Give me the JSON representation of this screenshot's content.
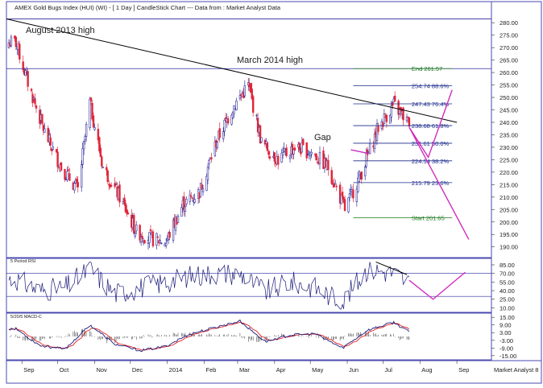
{
  "header": {
    "title": "AMEX Gold Bugs Index (HUI) (WI) -  [ 1 Day ] CandleStick Chart --- Data from : Market Analyst Data"
  },
  "colors": {
    "up_candle": "#2f2f9e",
    "down_candle": "#e0263a",
    "trendline": "#000000",
    "horizontal_level": "#2a2aa0",
    "fib_levels": "#1a2a8a",
    "fib_end": "#1a7a1a",
    "projection": "#d02cc0",
    "indicator_line": "#1c1c7a",
    "macd_signal": "#e02020",
    "macd_line": "#1c1c7a"
  },
  "chart_data": [
    {
      "type": "candlestick",
      "panel": "price",
      "title": "AMEX Gold Bugs Index (HUI) (WI) -  [ 1 Day ] CandleStick Chart --- Data from : Market Analyst Data",
      "x_labels": [
        "Sep",
        "Oct",
        "Nov",
        "Dec",
        "2014",
        "Feb",
        "Mar",
        "Apr",
        "May",
        "Jun",
        "Jul",
        "Aug",
        "Sep"
      ],
      "y_ticks": [
        "280.00",
        "275.00",
        "270.00",
        "265.00",
        "260.00",
        "255.00",
        "250.00",
        "245.00",
        "240.00",
        "235.00",
        "230.00",
        "225.00",
        "220.00",
        "215.00",
        "210.00",
        "205.00",
        "200.00",
        "195.00",
        "190.00"
      ],
      "ylim": [
        187,
        282
      ],
      "trend_closes": [
        {
          "date": "2013-08-27",
          "value": 272
        },
        {
          "date": "2013-09-06",
          "value": 256
        },
        {
          "date": "2013-09-20",
          "value": 236
        },
        {
          "date": "2013-10-04",
          "value": 222
        },
        {
          "date": "2013-10-18",
          "value": 213
        },
        {
          "date": "2013-10-28",
          "value": 248
        },
        {
          "date": "2013-11-08",
          "value": 222
        },
        {
          "date": "2013-11-22",
          "value": 210
        },
        {
          "date": "2013-12-06",
          "value": 196
        },
        {
          "date": "2013-12-20",
          "value": 193
        },
        {
          "date": "2013-12-31",
          "value": 192
        },
        {
          "date": "2014-01-14",
          "value": 207
        },
        {
          "date": "2014-01-28",
          "value": 212
        },
        {
          "date": "2014-02-11",
          "value": 232
        },
        {
          "date": "2014-02-25",
          "value": 246
        },
        {
          "date": "2014-03-10",
          "value": 255
        },
        {
          "date": "2014-03-21",
          "value": 232
        },
        {
          "date": "2014-04-04",
          "value": 225
        },
        {
          "date": "2014-04-18",
          "value": 230
        },
        {
          "date": "2014-05-02",
          "value": 228
        },
        {
          "date": "2014-05-16",
          "value": 222
        },
        {
          "date": "2014-05-30",
          "value": 205
        },
        {
          "date": "2014-06-13",
          "value": 220
        },
        {
          "date": "2014-06-27",
          "value": 238
        },
        {
          "date": "2014-07-10",
          "value": 247
        },
        {
          "date": "2014-07-22",
          "value": 240
        }
      ],
      "annotations": {
        "august_high": "August 2013 high",
        "march_high": "March 2014 high",
        "gap": "Gap"
      },
      "horizontal_level": 261.57,
      "trendline": [
        {
          "date": "2013-08-19",
          "value": 281.5
        },
        {
          "date": "2014-09-01",
          "value": 240
        }
      ],
      "fib_levels": [
        {
          "label": "End 261.57",
          "value": 261.57
        },
        {
          "label": "254.74 88.6%",
          "value": 254.74
        },
        {
          "label": "247.43 76.4%",
          "value": 247.43
        },
        {
          "label": "238.68 61.8%",
          "value": 238.68
        },
        {
          "label": "231.61 50.0%",
          "value": 231.61
        },
        {
          "label": "224.54 38.2%",
          "value": 224.54
        },
        {
          "label": "215.79 23.6%",
          "value": 215.79
        },
        {
          "label": "Start 201.65",
          "value": 201.65
        }
      ],
      "projection_path": [
        {
          "date": "2014-07-23",
          "value": 238
        },
        {
          "date": "2014-08-08",
          "value": 226
        },
        {
          "date": "2014-08-28",
          "value": 253
        }
      ],
      "projection_down": [
        {
          "date": "2014-07-23",
          "value": 238
        },
        {
          "date": "2014-09-11",
          "value": 193
        }
      ],
      "gap_arrow": [
        {
          "date": "2014-06-04",
          "value": 229
        },
        {
          "date": "2014-06-19",
          "value": 227.5
        }
      ]
    },
    {
      "type": "line",
      "panel": "rsi",
      "title": "5 Period RSI",
      "y_ticks": [
        "85.00",
        "70.00",
        "55.00",
        "40.00",
        "25.00",
        "10.00"
      ],
      "ylim": [
        5,
        92
      ],
      "levels": [
        70,
        30
      ],
      "trend_values": [
        {
          "date": "2013-08-27",
          "value": 60
        },
        {
          "date": "2013-09-16",
          "value": 40
        },
        {
          "date": "2013-10-07",
          "value": 45
        },
        {
          "date": "2013-10-28",
          "value": 78
        },
        {
          "date": "2013-11-18",
          "value": 35
        },
        {
          "date": "2013-12-09",
          "value": 45
        },
        {
          "date": "2013-12-30",
          "value": 55
        },
        {
          "date": "2014-01-20",
          "value": 65
        },
        {
          "date": "2014-02-10",
          "value": 70
        },
        {
          "date": "2014-03-03",
          "value": 70
        },
        {
          "date": "2014-03-24",
          "value": 38
        },
        {
          "date": "2014-04-14",
          "value": 55
        },
        {
          "date": "2014-05-05",
          "value": 45
        },
        {
          "date": "2014-05-28",
          "value": 20
        },
        {
          "date": "2014-06-18",
          "value": 78
        },
        {
          "date": "2014-07-10",
          "value": 70
        },
        {
          "date": "2014-07-22",
          "value": 55
        }
      ],
      "divergence_line": [
        {
          "date": "2014-06-25",
          "value": 90
        },
        {
          "date": "2014-07-21",
          "value": 68
        }
      ],
      "projection_path": [
        {
          "date": "2014-07-23",
          "value": 58
        },
        {
          "date": "2014-08-12",
          "value": 25
        },
        {
          "date": "2014-09-08",
          "value": 72
        }
      ]
    },
    {
      "type": "line",
      "panel": "macd",
      "title": "5/20/5 MACD-C",
      "y_ticks": [
        "15.00",
        "9.00",
        "3.00",
        "-3.00",
        "-9.00",
        "-15.00"
      ],
      "ylim": [
        -17,
        17
      ],
      "trend_values": [
        {
          "date": "2013-08-27",
          "value": 6
        },
        {
          "date": "2013-09-16",
          "value": -7
        },
        {
          "date": "2013-10-07",
          "value": -10
        },
        {
          "date": "2013-10-28",
          "value": 9
        },
        {
          "date": "2013-11-18",
          "value": -6
        },
        {
          "date": "2013-12-09",
          "value": -11
        },
        {
          "date": "2013-12-30",
          "value": -8
        },
        {
          "date": "2014-01-20",
          "value": 2
        },
        {
          "date": "2014-02-10",
          "value": 7
        },
        {
          "date": "2014-03-03",
          "value": 12
        },
        {
          "date": "2014-03-24",
          "value": -4
        },
        {
          "date": "2014-04-14",
          "value": 1
        },
        {
          "date": "2014-05-05",
          "value": 2
        },
        {
          "date": "2014-05-28",
          "value": -9
        },
        {
          "date": "2014-06-18",
          "value": 5
        },
        {
          "date": "2014-07-10",
          "value": 11
        },
        {
          "date": "2014-07-22",
          "value": 4
        }
      ]
    }
  ],
  "footer": {
    "watermark": "Market Analyst 8"
  }
}
